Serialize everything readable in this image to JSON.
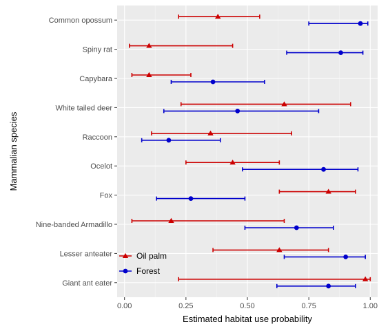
{
  "chart_data": {
    "type": "dot-with-error-bars",
    "xlabel": "Estimated habitat use probability",
    "ylabel": "Mammalian species",
    "xlim": [
      -0.03,
      1.03
    ],
    "xticks": [
      "0.00",
      "0.25",
      "0.50",
      "0.75",
      "1.00"
    ],
    "xtick_values": [
      0,
      0.25,
      0.5,
      0.75,
      1.0
    ],
    "grid": true,
    "legend_position": "bottom-left inside plot",
    "categories": [
      "Common opossum",
      "Spiny rat",
      "Capybara",
      "White tailed deer",
      "Raccoon",
      "Ocelot",
      "Fox",
      "Nine-banded Armadillo",
      "Lesser anteater",
      "Giant ant eater"
    ],
    "series": [
      {
        "name": "Oil palm",
        "color": "#cc0000",
        "marker": "triangle",
        "estimate": [
          0.38,
          0.1,
          0.1,
          0.65,
          0.35,
          0.44,
          0.83,
          0.19,
          0.63,
          0.98
        ],
        "lower": [
          0.22,
          0.02,
          0.03,
          0.23,
          0.11,
          0.25,
          0.63,
          0.03,
          0.36,
          0.22
        ],
        "upper": [
          0.55,
          0.44,
          0.27,
          0.92,
          0.68,
          0.63,
          0.94,
          0.65,
          0.83,
          1.0
        ]
      },
      {
        "name": "Forest",
        "color": "#0000cc",
        "marker": "circle",
        "estimate": [
          0.96,
          0.88,
          0.36,
          0.46,
          0.18,
          0.81,
          0.27,
          0.7,
          0.9,
          0.83
        ],
        "lower": [
          0.75,
          0.66,
          0.19,
          0.16,
          0.07,
          0.48,
          0.13,
          0.49,
          0.65,
          0.62
        ],
        "upper": [
          0.99,
          0.97,
          0.57,
          0.79,
          0.39,
          0.95,
          0.49,
          0.85,
          0.98,
          0.94
        ]
      }
    ]
  }
}
